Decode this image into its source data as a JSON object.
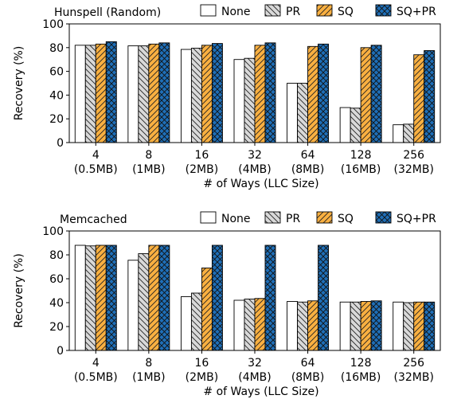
{
  "series_styles": [
    {
      "key": "none",
      "fill": "#ffffff",
      "pattern": "none"
    },
    {
      "key": "pr",
      "fill": "#d9d9d9",
      "pattern": "diag-back"
    },
    {
      "key": "sq",
      "fill": "#f9b041",
      "pattern": "diag-fwd"
    },
    {
      "key": "sqpr",
      "fill": "#1f6fb8",
      "pattern": "cross"
    }
  ],
  "chart_data": [
    {
      "type": "bar",
      "title": "Hunspell (Random)",
      "ylabel": "Recovery (%)",
      "xlabel": "# of Ways (LLC Size)",
      "ylim": [
        0,
        100
      ],
      "yticks": [
        0,
        20,
        40,
        60,
        80,
        100
      ],
      "categories": [
        "4",
        "8",
        "16",
        "32",
        "64",
        "128",
        "256"
      ],
      "category_sublabels": [
        "(0.5MB)",
        "(1MB)",
        "(2MB)",
        "(4MB)",
        "(8MB)",
        "(16MB)",
        "(32MB)"
      ],
      "legend_placement": "top-right",
      "series": [
        {
          "name": "None",
          "values": [
            82,
            81.5,
            78.5,
            70,
            50,
            29.5,
            15
          ]
        },
        {
          "name": "PR",
          "values": [
            82,
            81.5,
            79.5,
            71,
            50,
            29,
            15.5
          ]
        },
        {
          "name": "SQ",
          "values": [
            83,
            83,
            82,
            82,
            81,
            80,
            74
          ]
        },
        {
          "name": "SQ+PR",
          "values": [
            85,
            84,
            83.5,
            84,
            83,
            82,
            77.5
          ]
        }
      ]
    },
    {
      "type": "bar",
      "title": "Memcached",
      "ylabel": "Recovery (%)",
      "xlabel": "# of Ways (LLC Size)",
      "ylim": [
        0,
        100
      ],
      "yticks": [
        0,
        20,
        40,
        60,
        80,
        100
      ],
      "categories": [
        "4",
        "8",
        "16",
        "32",
        "64",
        "128",
        "256"
      ],
      "category_sublabels": [
        "(0.5MB)",
        "(1MB)",
        "(2MB)",
        "(4MB)",
        "(8MB)",
        "(16MB)",
        "(32MB)"
      ],
      "legend_placement": "top-right",
      "series": [
        {
          "name": "None",
          "values": [
            88,
            75.5,
            45,
            42,
            41,
            40.5,
            40.5
          ]
        },
        {
          "name": "PR",
          "values": [
            87.5,
            81,
            48,
            43,
            40.5,
            40.5,
            40
          ]
        },
        {
          "name": "SQ",
          "values": [
            88,
            88,
            69,
            43.5,
            41.5,
            41,
            40.5
          ]
        },
        {
          "name": "SQ+PR",
          "values": [
            88,
            88,
            88,
            88,
            88,
            41.5,
            40.5
          ]
        }
      ]
    }
  ]
}
